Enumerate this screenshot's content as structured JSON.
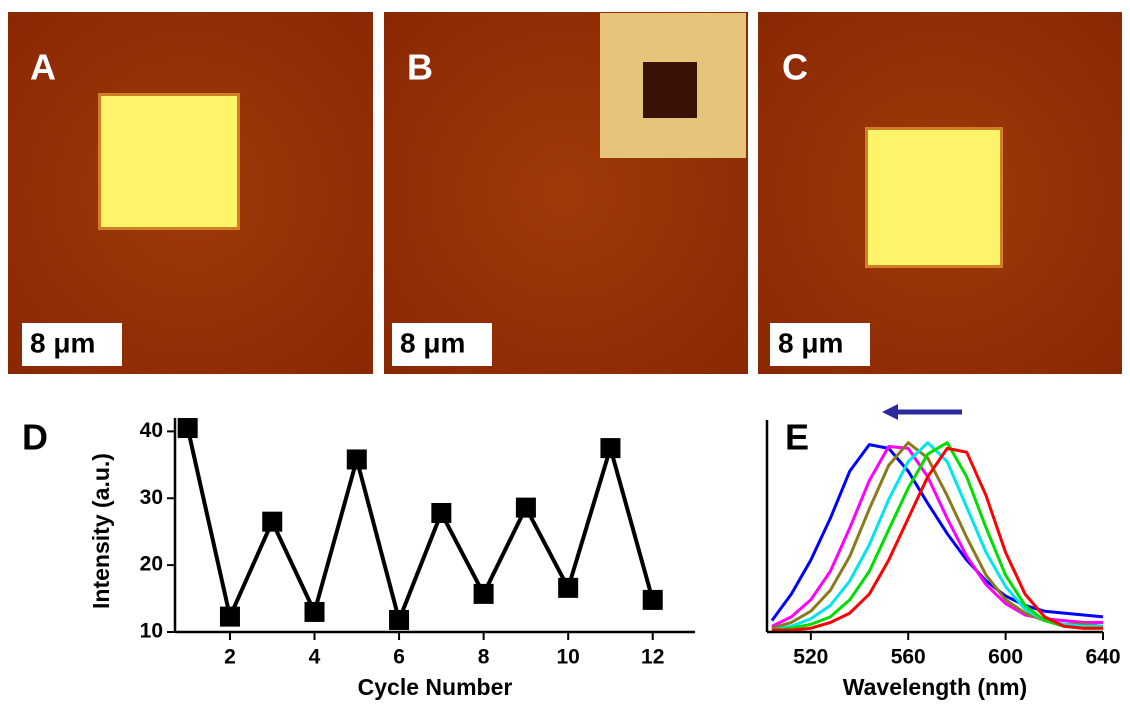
{
  "panels": [
    {
      "label": "A",
      "scale": "8 μm"
    },
    {
      "label": "B",
      "scale": "8 μm"
    },
    {
      "label": "C",
      "scale": "8 μm"
    }
  ],
  "chart_data": [
    {
      "type": "line",
      "label": "D",
      "marker": "square",
      "color": "#000000",
      "x_label": "Cycle Number",
      "y_label": "Intensity (a.u.)",
      "x": [
        1,
        2,
        3,
        4,
        5,
        6,
        7,
        8,
        9,
        10,
        11,
        12
      ],
      "series": [
        {
          "color": "#000000",
          "values": [
            40.5,
            12.3,
            26.5,
            13,
            35.8,
            11.8,
            27.8,
            15.7,
            28.6,
            16.6,
            37.5,
            14.8
          ]
        }
      ],
      "xlim": [
        0.7,
        13
      ],
      "ylim": [
        10,
        42
      ],
      "xticks": [
        2,
        4,
        6,
        8,
        10,
        12
      ],
      "yticks": [
        10,
        20,
        30,
        40
      ]
    },
    {
      "type": "line",
      "label": "E",
      "x_label": "Wavelength (nm)",
      "x": [
        504,
        512,
        520,
        528,
        536,
        544,
        552,
        560,
        568,
        576,
        584,
        592,
        600,
        608,
        616,
        624,
        632,
        640
      ],
      "series": [
        {
          "color": "#0000ff",
          "values": [
            0.06,
            0.2,
            0.38,
            0.6,
            0.85,
            0.99,
            0.97,
            0.85,
            0.68,
            0.52,
            0.38,
            0.27,
            0.19,
            0.14,
            0.11,
            0.1,
            0.09,
            0.08
          ]
        },
        {
          "color": "#ff00ff",
          "values": [
            0.03,
            0.08,
            0.17,
            0.32,
            0.55,
            0.8,
            0.98,
            0.97,
            0.82,
            0.6,
            0.4,
            0.25,
            0.15,
            0.09,
            0.07,
            0.06,
            0.05,
            0.05
          ]
        },
        {
          "color": "#8b7a1a",
          "values": [
            0.02,
            0.05,
            0.11,
            0.22,
            0.4,
            0.65,
            0.88,
            1.0,
            0.92,
            0.72,
            0.5,
            0.3,
            0.17,
            0.1,
            0.06,
            0.04,
            0.04,
            0.03
          ]
        },
        {
          "color": "#00e5ee",
          "values": [
            0.01,
            0.03,
            0.07,
            0.14,
            0.27,
            0.46,
            0.7,
            0.9,
            1.0,
            0.9,
            0.66,
            0.42,
            0.24,
            0.12,
            0.06,
            0.04,
            0.03,
            0.03
          ]
        },
        {
          "color": "#00dd00",
          "values": [
            0.01,
            0.02,
            0.04,
            0.08,
            0.17,
            0.32,
            0.54,
            0.76,
            0.94,
            1.0,
            0.82,
            0.55,
            0.3,
            0.14,
            0.06,
            0.03,
            0.02,
            0.02
          ]
        },
        {
          "color": "#ff0000",
          "values": [
            0.01,
            0.01,
            0.02,
            0.05,
            0.1,
            0.2,
            0.38,
            0.6,
            0.82,
            0.97,
            0.95,
            0.72,
            0.42,
            0.2,
            0.08,
            0.03,
            0.02,
            0.02
          ]
        }
      ],
      "xlim": [
        502,
        640
      ],
      "ylim": [
        0,
        1.12
      ],
      "xticks": [
        520,
        560,
        600,
        640
      ]
    }
  ]
}
